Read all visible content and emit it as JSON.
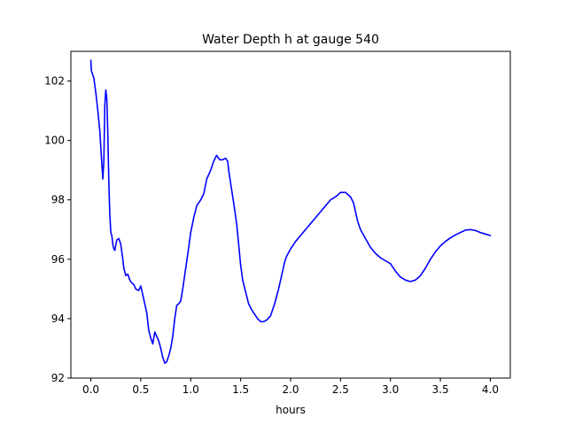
{
  "chart_data": {
    "type": "line",
    "title": "Water Depth h at gauge 540",
    "xlabel": "hours",
    "ylabel": "",
    "xlim": [
      -0.2,
      4.2
    ],
    "ylim": [
      92,
      103
    ],
    "x_ticks": [
      0.0,
      0.5,
      1.0,
      1.5,
      2.0,
      2.5,
      3.0,
      3.5,
      4.0
    ],
    "x_tick_labels": [
      "0.0",
      "0.5",
      "1.0",
      "1.5",
      "2.0",
      "2.5",
      "3.0",
      "3.5",
      "4.0"
    ],
    "y_ticks": [
      92,
      94,
      96,
      98,
      100,
      102
    ],
    "y_tick_labels": [
      "92",
      "94",
      "96",
      "98",
      "100",
      "102"
    ],
    "grid": false,
    "series": [
      {
        "color": "#0000ff",
        "x": [
          0.0,
          0.005,
          0.01,
          0.03,
          0.05,
          0.07,
          0.09,
          0.11,
          0.12,
          0.13,
          0.14,
          0.15,
          0.16,
          0.17,
          0.18,
          0.19,
          0.2,
          0.21,
          0.22,
          0.23,
          0.24,
          0.26,
          0.28,
          0.3,
          0.32,
          0.33,
          0.35,
          0.37,
          0.39,
          0.41,
          0.43,
          0.45,
          0.48,
          0.5,
          0.52,
          0.54,
          0.56,
          0.58,
          0.6,
          0.62,
          0.64,
          0.66,
          0.68,
          0.7,
          0.72,
          0.74,
          0.76,
          0.78,
          0.8,
          0.82,
          0.84,
          0.86,
          0.88,
          0.9,
          0.92,
          0.95,
          0.98,
          1.0,
          1.03,
          1.06,
          1.1,
          1.13,
          1.16,
          1.2,
          1.23,
          1.26,
          1.29,
          1.32,
          1.35,
          1.37,
          1.38,
          1.4,
          1.43,
          1.46,
          1.48,
          1.5,
          1.52,
          1.55,
          1.58,
          1.61,
          1.64,
          1.67,
          1.7,
          1.73,
          1.76,
          1.8,
          1.84,
          1.88,
          1.9,
          1.92,
          1.94,
          1.96,
          2.0,
          2.05,
          2.1,
          2.15,
          2.2,
          2.25,
          2.3,
          2.35,
          2.4,
          2.45,
          2.5,
          2.55,
          2.6,
          2.63,
          2.65,
          2.67,
          2.7,
          2.75,
          2.8,
          2.85,
          2.9,
          2.95,
          3.0,
          3.05,
          3.1,
          3.15,
          3.2,
          3.25,
          3.3,
          3.35,
          3.4,
          3.45,
          3.5,
          3.55,
          3.6,
          3.65,
          3.7,
          3.75,
          3.8,
          3.85,
          3.9,
          3.95,
          4.0
        ],
        "y": [
          102.7,
          102.35,
          102.3,
          102.1,
          101.6,
          101.0,
          100.3,
          99.2,
          98.7,
          99.3,
          101.2,
          101.7,
          101.4,
          100.2,
          98.6,
          97.5,
          96.9,
          96.8,
          96.5,
          96.35,
          96.3,
          96.65,
          96.7,
          96.5,
          96.0,
          95.7,
          95.45,
          95.5,
          95.3,
          95.2,
          95.15,
          95.0,
          94.95,
          95.1,
          94.8,
          94.5,
          94.2,
          93.6,
          93.35,
          93.15,
          93.55,
          93.4,
          93.25,
          93.0,
          92.7,
          92.5,
          92.55,
          92.75,
          93.0,
          93.4,
          94.0,
          94.45,
          94.5,
          94.6,
          95.0,
          95.7,
          96.4,
          96.9,
          97.4,
          97.8,
          98.0,
          98.2,
          98.7,
          99.0,
          99.3,
          99.5,
          99.35,
          99.35,
          99.4,
          99.3,
          99.0,
          98.55,
          97.9,
          97.2,
          96.5,
          95.8,
          95.3,
          94.9,
          94.5,
          94.3,
          94.15,
          94.0,
          93.9,
          93.9,
          93.95,
          94.1,
          94.5,
          95.0,
          95.3,
          95.6,
          95.9,
          96.1,
          96.35,
          96.6,
          96.8,
          97.0,
          97.2,
          97.4,
          97.6,
          97.8,
          98.0,
          98.1,
          98.25,
          98.25,
          98.1,
          97.9,
          97.6,
          97.3,
          97.0,
          96.7,
          96.4,
          96.2,
          96.05,
          95.95,
          95.85,
          95.6,
          95.4,
          95.3,
          95.25,
          95.3,
          95.45,
          95.7,
          96.0,
          96.25,
          96.45,
          96.6,
          96.72,
          96.82,
          96.9,
          96.98,
          97.0,
          96.97,
          96.9,
          96.85,
          96.8
        ]
      }
    ]
  }
}
